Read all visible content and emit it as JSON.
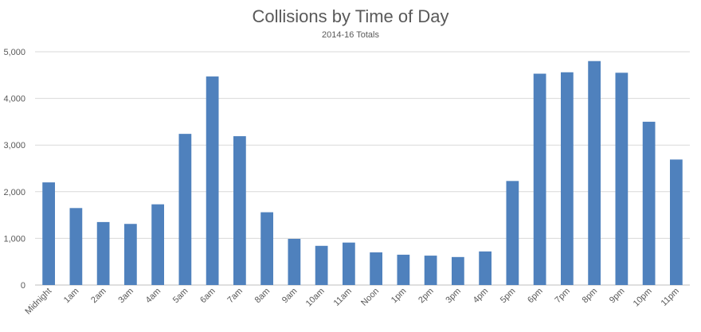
{
  "chart_data": {
    "type": "bar",
    "title": "Collisions by Time of Day",
    "subtitle": "2014-16 Totals",
    "xlabel": "",
    "ylabel": "",
    "ylim": [
      0,
      5000
    ],
    "yticks": [
      0,
      1000,
      2000,
      3000,
      4000,
      5000
    ],
    "ytick_labels": [
      "0",
      "1,000",
      "2,000",
      "3,000",
      "4,000",
      "5,000"
    ],
    "grid": true,
    "legend": "none",
    "bar_color": "#4f81bd",
    "categories": [
      "Midnight",
      "1am",
      "2am",
      "3am",
      "4am",
      "5am",
      "6am",
      "7am",
      "8am",
      "9am",
      "10am",
      "11am",
      "Noon",
      "1pm",
      "2pm",
      "3pm",
      "4pm",
      "5pm",
      "6pm",
      "7pm",
      "8pm",
      "9pm",
      "10pm",
      "11pm"
    ],
    "values": [
      2200,
      1650,
      1350,
      1310,
      1730,
      3240,
      4470,
      3190,
      1560,
      990,
      840,
      910,
      700,
      650,
      630,
      600,
      720,
      2230,
      4530,
      4560,
      4800,
      4550,
      3500,
      2690
    ]
  }
}
